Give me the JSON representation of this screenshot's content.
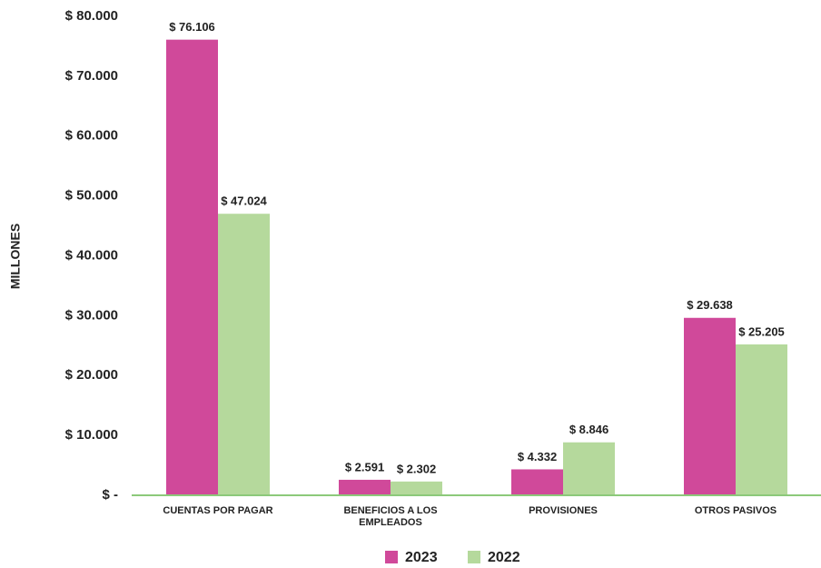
{
  "chart_data": {
    "type": "bar",
    "y_axis_label": "MILLONES",
    "categories": [
      "CUENTAS POR PAGAR",
      "BENEFICIOS A LOS EMPLEADOS",
      "PROVISIONES",
      "OTROS PASIVOS"
    ],
    "series": [
      {
        "name": "2023",
        "color": "#d0499a",
        "values": [
          76106,
          2591,
          4332,
          29638
        ],
        "value_labels": [
          "$ 76.106",
          "$ 2.591",
          "$ 4.332",
          "$ 29.638"
        ]
      },
      {
        "name": "2022",
        "color": "#b5d99c",
        "values": [
          47024,
          2302,
          8846,
          25205
        ],
        "value_labels": [
          "$ 47.024",
          "$ 2.302",
          "$ 8.846",
          "$ 25.205"
        ]
      }
    ],
    "ylim": [
      0,
      80000
    ],
    "yticks": [
      {
        "value": 0,
        "label": "$ -"
      },
      {
        "value": 10000,
        "label": "$ 10.000"
      },
      {
        "value": 20000,
        "label": "$ 20.000"
      },
      {
        "value": 30000,
        "label": "$ 30.000"
      },
      {
        "value": 40000,
        "label": "$ 40.000"
      },
      {
        "value": 50000,
        "label": "$ 50.000"
      },
      {
        "value": 60000,
        "label": "$ 60.000"
      },
      {
        "value": 70000,
        "label": "$ 70.000"
      },
      {
        "value": 80000,
        "label": "$ 80.000"
      }
    ],
    "axis_color": "#8cc97a",
    "legend": "bottom"
  }
}
